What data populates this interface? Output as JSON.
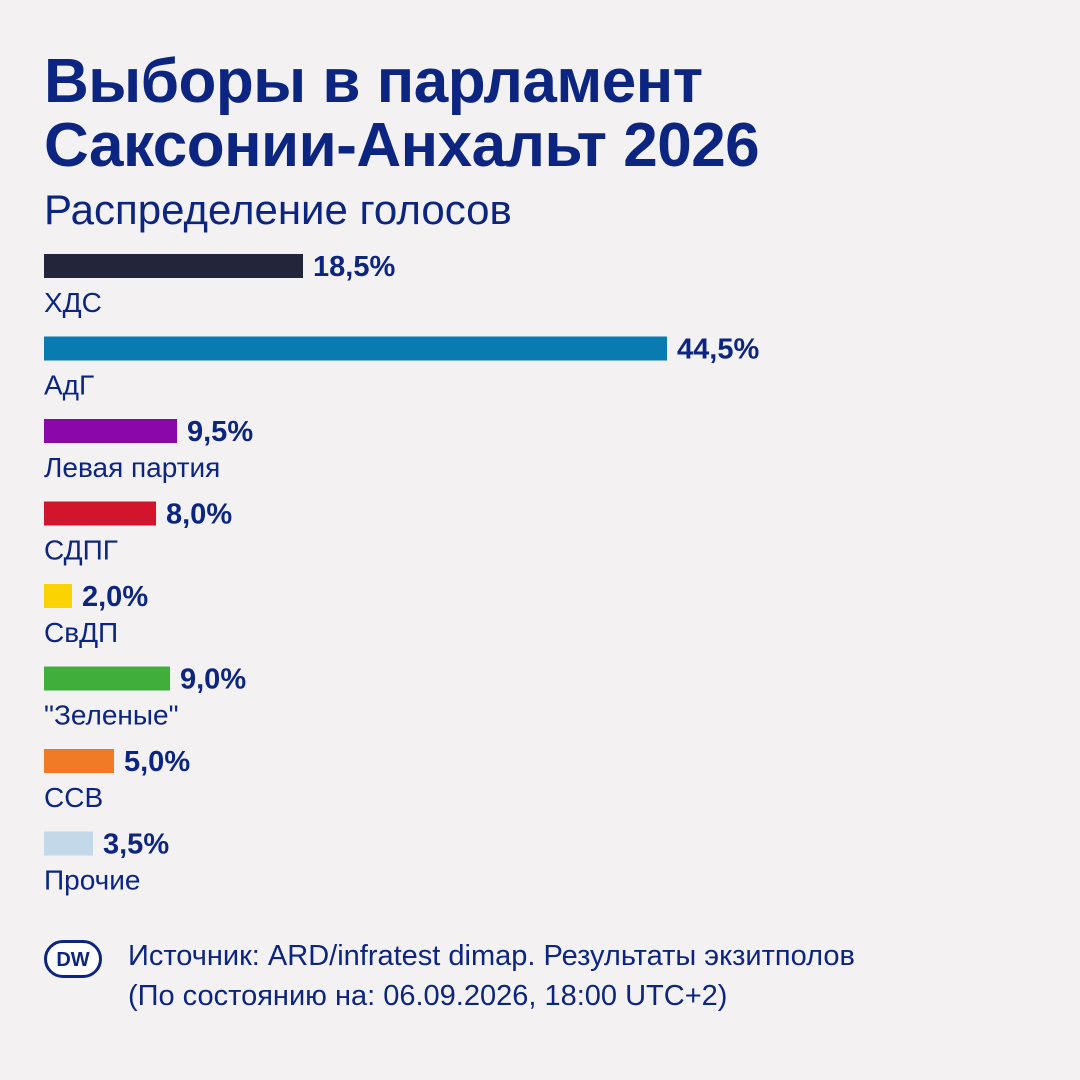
{
  "header": {
    "title_line1": "Выборы в парламент",
    "title_line2": "Саксонии-Анхальт 2026",
    "subtitle": "Распределение голосов"
  },
  "chart_data": {
    "type": "bar",
    "orientation": "horizontal",
    "title": "Выборы в парламент Саксонии-Анхальт 2026",
    "subtitle": "Распределение голосов",
    "categories": [
      "ХДС",
      "АдГ",
      "Левая партия",
      "СДПГ",
      "СвДП",
      "\"Зеленые\"",
      "ССВ",
      "Прочие"
    ],
    "values": [
      18.5,
      44.5,
      9.5,
      8.0,
      2.0,
      9.0,
      5.0,
      3.5
    ],
    "value_labels": [
      "18,5%",
      "44,5%",
      "9,5%",
      "8,0%",
      "2,0%",
      "9,0%",
      "5,0%",
      "3,5%"
    ],
    "colors": [
      "#23263a",
      "#0a7bb0",
      "#8a08a8",
      "#d2152c",
      "#fbd300",
      "#3fae3a",
      "#f07b27",
      "#c3d8e8"
    ],
    "unit": "%",
    "grid": false,
    "legend": "none"
  },
  "footer": {
    "logo_text": "DW",
    "source_line1": "Источник: ARD/infratest dimap. Результаты экзитполов",
    "source_line2": "(По состоянию на: 06.09.2026, 18:00 UTC+2)"
  }
}
